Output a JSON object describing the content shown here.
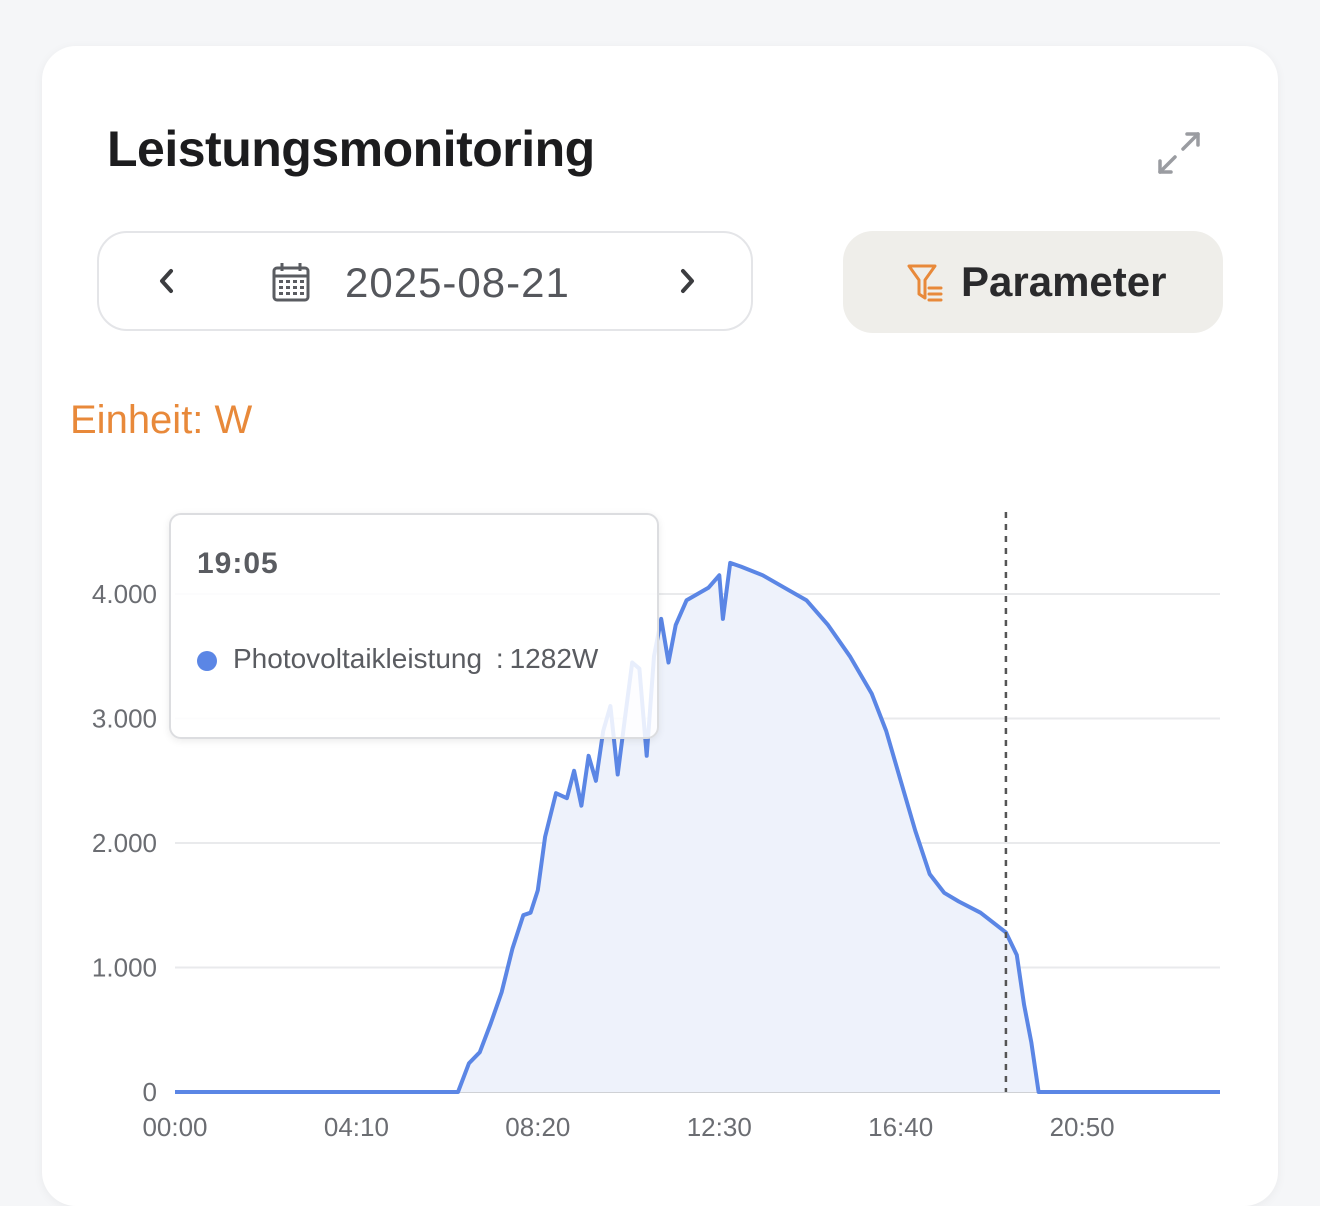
{
  "header": {
    "title": "Leistungsmonitoring",
    "expand_icon": "expand-arrows-icon"
  },
  "date_nav": {
    "prev_icon": "chevron-left-icon",
    "calendar_icon": "calendar-icon",
    "date": "2025-08-21",
    "next_icon": "chevron-right-icon"
  },
  "parameter_button": {
    "label": "Parameter",
    "icon": "filter-icon"
  },
  "colors": {
    "accent": "#e8893a",
    "series": "#5b86e5",
    "fill": "#eef2fb"
  },
  "unit_label": "Einheit: W",
  "tooltip": {
    "time": "19:05",
    "series_name": "Photovoltaikleistung",
    "separator": ":",
    "value": "1282W"
  },
  "chart_data": {
    "type": "area",
    "title": "",
    "xlabel": "",
    "ylabel": "",
    "unit": "W",
    "ylim": [
      0,
      4000
    ],
    "y_ticks": [
      0,
      1000,
      2000,
      3000,
      4000
    ],
    "y_tick_labels": [
      "0",
      "1.000",
      "2.000",
      "3.000",
      "4.000"
    ],
    "x_tick_labels": [
      "00:00",
      "04:10",
      "08:20",
      "12:30",
      "16:40",
      "20:50"
    ],
    "grid": true,
    "cursor_time": "19:05",
    "series": [
      {
        "name": "Photovoltaikleistung",
        "points": [
          [
            "00:00",
            0
          ],
          [
            "06:30",
            0
          ],
          [
            "06:45",
            230
          ],
          [
            "07:00",
            320
          ],
          [
            "07:15",
            550
          ],
          [
            "07:30",
            800
          ],
          [
            "07:45",
            1150
          ],
          [
            "08:00",
            1420
          ],
          [
            "08:10",
            1440
          ],
          [
            "08:20",
            1620
          ],
          [
            "08:30",
            2050
          ],
          [
            "08:45",
            2400
          ],
          [
            "09:00",
            2360
          ],
          [
            "09:10",
            2580
          ],
          [
            "09:20",
            2300
          ],
          [
            "09:30",
            2700
          ],
          [
            "09:40",
            2500
          ],
          [
            "09:50",
            2900
          ],
          [
            "10:00",
            3100
          ],
          [
            "10:10",
            2550
          ],
          [
            "10:20",
            3000
          ],
          [
            "10:30",
            3450
          ],
          [
            "10:40",
            3400
          ],
          [
            "10:50",
            2700
          ],
          [
            "11:00",
            3500
          ],
          [
            "11:10",
            3800
          ],
          [
            "11:20",
            3450
          ],
          [
            "11:30",
            3750
          ],
          [
            "11:45",
            3950
          ],
          [
            "12:00",
            4000
          ],
          [
            "12:15",
            4050
          ],
          [
            "12:30",
            4150
          ],
          [
            "12:35",
            3800
          ],
          [
            "12:45",
            4250
          ],
          [
            "13:00",
            4220
          ],
          [
            "13:30",
            4150
          ],
          [
            "14:00",
            4050
          ],
          [
            "14:30",
            3950
          ],
          [
            "15:00",
            3750
          ],
          [
            "15:30",
            3500
          ],
          [
            "16:00",
            3200
          ],
          [
            "16:20",
            2900
          ],
          [
            "16:40",
            2500
          ],
          [
            "17:00",
            2100
          ],
          [
            "17:20",
            1750
          ],
          [
            "17:40",
            1600
          ],
          [
            "18:00",
            1530
          ],
          [
            "18:30",
            1440
          ],
          [
            "19:05",
            1282
          ],
          [
            "19:20",
            1100
          ],
          [
            "19:30",
            700
          ],
          [
            "19:40",
            400
          ],
          [
            "19:50",
            0
          ],
          [
            "24:00",
            0
          ]
        ]
      }
    ]
  }
}
